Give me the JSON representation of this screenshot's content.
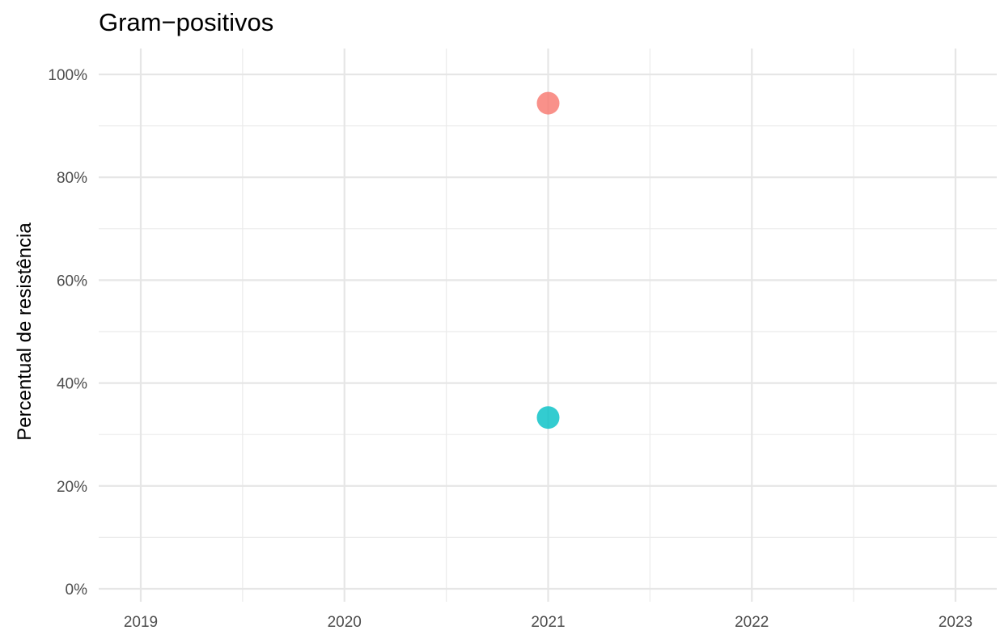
{
  "chart_data": {
    "type": "scatter",
    "title": "Gram−positivos",
    "xlabel": "",
    "ylabel": "Percentual de resistência",
    "x_ticks": [
      "2019",
      "2020",
      "2021",
      "2022",
      "2023"
    ],
    "y_ticks": [
      "0%",
      "20%",
      "40%",
      "60%",
      "80%",
      "100%"
    ],
    "xlim": [
      2018.8,
      2023.2
    ],
    "ylim": [
      0,
      100
    ],
    "grid": true,
    "legend": "none",
    "series": [
      {
        "color": "#F8766D",
        "points": [
          {
            "x": "2021",
            "y": 94.4
          }
        ]
      },
      {
        "color": "#00BFC4",
        "points": [
          {
            "x": "2021",
            "y": 33.3
          }
        ]
      }
    ]
  }
}
